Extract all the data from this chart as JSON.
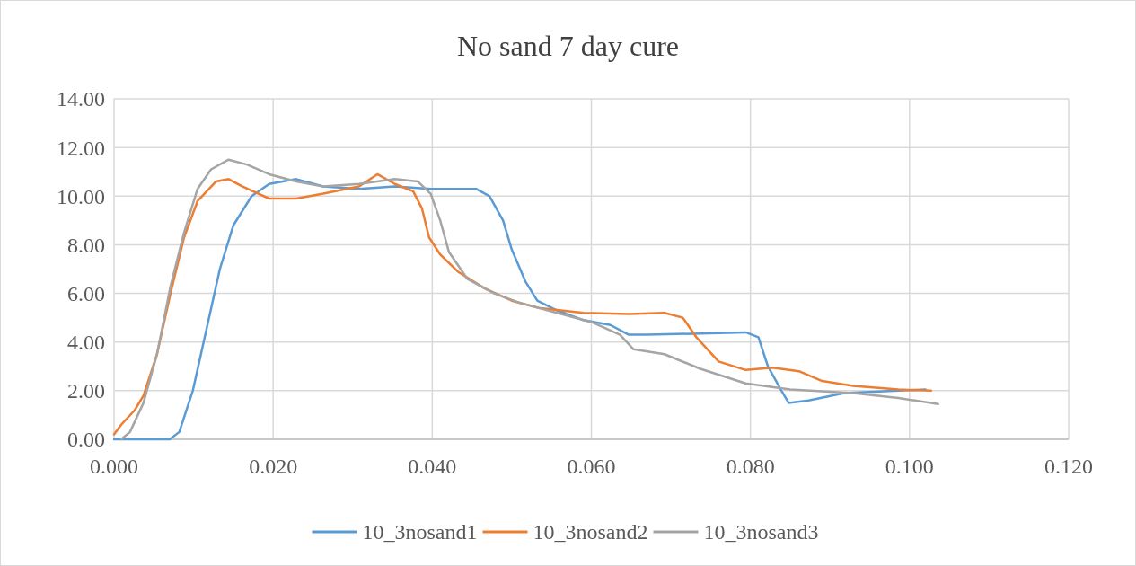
{
  "chart_data": {
    "type": "line",
    "title": "No sand 7 day cure",
    "xlim": [
      0,
      0.12
    ],
    "ylim": [
      0,
      14
    ],
    "xticks": [
      {
        "value": 0,
        "label": "0.000"
      },
      {
        "value": 0.02,
        "label": "0.020"
      },
      {
        "value": 0.04,
        "label": "0.040"
      },
      {
        "value": 0.06,
        "label": "0.060"
      },
      {
        "value": 0.08,
        "label": "0.080"
      },
      {
        "value": 0.1,
        "label": "0.100"
      },
      {
        "value": 0.12,
        "label": "0.120"
      }
    ],
    "yticks": [
      {
        "value": 0,
        "label": "0.00"
      },
      {
        "value": 2,
        "label": "2.00"
      },
      {
        "value": 4,
        "label": "4.00"
      },
      {
        "value": 6,
        "label": "6.00"
      },
      {
        "value": 8,
        "label": "8.00"
      },
      {
        "value": 10,
        "label": "10.00"
      },
      {
        "value": 12,
        "label": "12.00"
      },
      {
        "value": 14,
        "label": "14.00"
      }
    ],
    "grid": true,
    "legend": "bottom",
    "marker": "none",
    "line_style": "solid",
    "series": [
      {
        "name": "10_3nosand1",
        "color": "#5b9bd5",
        "x": [
          0,
          0.007,
          0.0082,
          0.0099,
          0.0116,
          0.0133,
          0.015,
          0.0173,
          0.0195,
          0.0229,
          0.0263,
          0.0308,
          0.0353,
          0.0398,
          0.0455,
          0.0472,
          0.0489,
          0.05,
          0.0517,
          0.0532,
          0.0557,
          0.059,
          0.0624,
          0.0647,
          0.067,
          0.0737,
          0.0794,
          0.081,
          0.0822,
          0.0839,
          0.0848,
          0.0873,
          0.0918,
          0.0986,
          0.102
        ],
        "values": [
          0,
          0,
          0.3,
          2,
          4.5,
          7,
          8.8,
          10,
          10.5,
          10.7,
          10.4,
          10.3,
          10.4,
          10.3,
          10.3,
          10,
          9,
          7.8,
          6.5,
          5.7,
          5.3,
          4.9,
          4.7,
          4.3,
          4.3,
          4.35,
          4.4,
          4.2,
          3,
          2,
          1.5,
          1.6,
          1.9,
          2,
          2.05
        ]
      },
      {
        "name": "10_3nosand2",
        "color": "#ed7d31",
        "x": [
          0,
          0.0009,
          0.0026,
          0.0037,
          0.0054,
          0.0071,
          0.0088,
          0.0105,
          0.0128,
          0.0144,
          0.0161,
          0.0195,
          0.0229,
          0.0263,
          0.0308,
          0.0331,
          0.0353,
          0.0376,
          0.0387,
          0.0396,
          0.041,
          0.0432,
          0.0466,
          0.05,
          0.0534,
          0.059,
          0.0647,
          0.0692,
          0.0715,
          0.0732,
          0.076,
          0.0794,
          0.0828,
          0.0861,
          0.089,
          0.0929,
          0.0986,
          0.1027
        ],
        "values": [
          0.2,
          0.6,
          1.2,
          1.8,
          3.5,
          6,
          8.3,
          9.8,
          10.6,
          10.7,
          10.4,
          9.9,
          9.9,
          10.1,
          10.4,
          10.9,
          10.5,
          10.2,
          9.5,
          8.3,
          7.6,
          6.9,
          6.2,
          5.7,
          5.4,
          5.2,
          5.15,
          5.2,
          5,
          4.2,
          3.2,
          2.85,
          2.95,
          2.8,
          2.4,
          2.2,
          2.05,
          2
        ]
      },
      {
        "name": "10_3nosand3",
        "color": "#a5a5a5",
        "x": [
          0.0009,
          0.002,
          0.0037,
          0.0054,
          0.0071,
          0.0088,
          0.0105,
          0.0122,
          0.0144,
          0.0167,
          0.0195,
          0.0229,
          0.0263,
          0.0308,
          0.0353,
          0.0382,
          0.0398,
          0.041,
          0.0421,
          0.0444,
          0.0478,
          0.0511,
          0.0557,
          0.0602,
          0.0636,
          0.0653,
          0.0692,
          0.0737,
          0.0794,
          0.085,
          0.0929,
          0.0986,
          0.1036
        ],
        "values": [
          0,
          0.3,
          1.5,
          3.5,
          6.3,
          8.5,
          10.3,
          11.1,
          11.5,
          11.3,
          10.9,
          10.6,
          10.4,
          10.5,
          10.7,
          10.6,
          10.1,
          9,
          7.7,
          6.6,
          6,
          5.6,
          5.2,
          4.8,
          4.3,
          3.7,
          3.5,
          2.9,
          2.3,
          2.05,
          1.9,
          1.7,
          1.45
        ]
      }
    ]
  }
}
